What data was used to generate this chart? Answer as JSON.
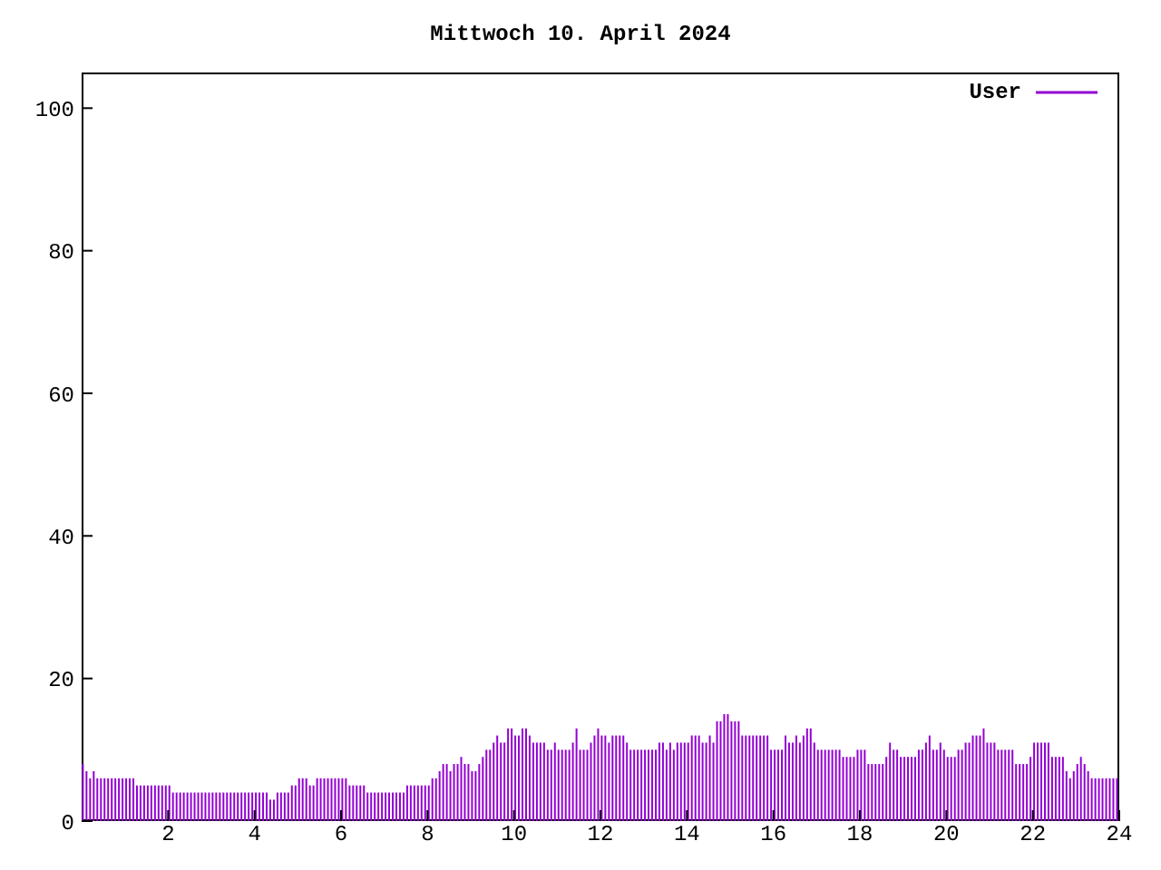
{
  "chart_data": {
    "type": "bar",
    "title": "Mittwoch 10. April 2024",
    "x": [
      0.05,
      0.133,
      0.217,
      0.3,
      0.383,
      0.467,
      0.55,
      0.633,
      0.717,
      0.8,
      0.883,
      0.967,
      1.05,
      1.133,
      1.217,
      1.3,
      1.383,
      1.467,
      1.55,
      1.633,
      1.717,
      1.8,
      1.883,
      1.967,
      2.05,
      2.133,
      2.217,
      2.3,
      2.383,
      2.467,
      2.55,
      2.633,
      2.717,
      2.8,
      2.883,
      2.967,
      3.05,
      3.133,
      3.217,
      3.3,
      3.383,
      3.467,
      3.55,
      3.633,
      3.717,
      3.8,
      3.883,
      3.967,
      4.05,
      4.133,
      4.217,
      4.3,
      4.383,
      4.467,
      4.55,
      4.633,
      4.717,
      4.8,
      4.883,
      4.967,
      5.05,
      5.133,
      5.217,
      5.3,
      5.383,
      5.467,
      5.55,
      5.633,
      5.717,
      5.8,
      5.883,
      5.967,
      6.05,
      6.133,
      6.217,
      6.3,
      6.383,
      6.467,
      6.55,
      6.633,
      6.717,
      6.8,
      6.883,
      6.967,
      7.05,
      7.133,
      7.217,
      7.3,
      7.383,
      7.467,
      7.55,
      7.633,
      7.717,
      7.8,
      7.883,
      7.967,
      8.05,
      8.133,
      8.217,
      8.3,
      8.383,
      8.467,
      8.55,
      8.633,
      8.717,
      8.8,
      8.883,
      8.967,
      9.05,
      9.133,
      9.217,
      9.3,
      9.383,
      9.467,
      9.55,
      9.633,
      9.717,
      9.8,
      9.883,
      9.967,
      10.05,
      10.133,
      10.217,
      10.3,
      10.383,
      10.467,
      10.55,
      10.633,
      10.717,
      10.8,
      10.883,
      10.967,
      11.05,
      11.133,
      11.217,
      11.3,
      11.383,
      11.467,
      11.55,
      11.633,
      11.717,
      11.8,
      11.883,
      11.967,
      12.05,
      12.133,
      12.217,
      12.3,
      12.383,
      12.467,
      12.55,
      12.633,
      12.717,
      12.8,
      12.883,
      12.967,
      13.05,
      13.133,
      13.217,
      13.3,
      13.383,
      13.467,
      13.55,
      13.633,
      13.717,
      13.8,
      13.883,
      13.967,
      14.05,
      14.133,
      14.217,
      14.3,
      14.383,
      14.467,
      14.55,
      14.633,
      14.717,
      14.8,
      14.883,
      14.967,
      15.05,
      15.133,
      15.217,
      15.3,
      15.383,
      15.467,
      15.55,
      15.633,
      15.717,
      15.8,
      15.883,
      15.967,
      16.05,
      16.133,
      16.217,
      16.3,
      16.383,
      16.467,
      16.55,
      16.633,
      16.717,
      16.8,
      16.883,
      16.967,
      17.05,
      17.133,
      17.217,
      17.3,
      17.383,
      17.467,
      17.55,
      17.633,
      17.717,
      17.8,
      17.883,
      17.967,
      18.05,
      18.133,
      18.217,
      18.3,
      18.383,
      18.467,
      18.55,
      18.633,
      18.717,
      18.8,
      18.883,
      18.967,
      19.05,
      19.133,
      19.217,
      19.3,
      19.383,
      19.467,
      19.55,
      19.633,
      19.717,
      19.8,
      19.883,
      19.967,
      20.05,
      20.133,
      20.217,
      20.3,
      20.383,
      20.467,
      20.55,
      20.633,
      20.717,
      20.8,
      20.883,
      20.967,
      21.05,
      21.133,
      21.217,
      21.3,
      21.383,
      21.467,
      21.55,
      21.633,
      21.717,
      21.8,
      21.883,
      21.967,
      22.05,
      22.133,
      22.217,
      22.3,
      22.383,
      22.467,
      22.55,
      22.633,
      22.717,
      22.8,
      22.883,
      22.967,
      23.05,
      23.133,
      23.217,
      23.3,
      23.383,
      23.467,
      23.55,
      23.633,
      23.717,
      23.8,
      23.883,
      23.967
    ],
    "series": [
      {
        "name": "User",
        "color": "#9400d3",
        "values": [
          8,
          7,
          6,
          7,
          6,
          6,
          6,
          6,
          6,
          6,
          6,
          6,
          6,
          6,
          6,
          5,
          5,
          5,
          5,
          5,
          5,
          5,
          5,
          5,
          5,
          4,
          4,
          4,
          4,
          4,
          4,
          4,
          4,
          4,
          4,
          4,
          4,
          4,
          4,
          4,
          4,
          4,
          4,
          4,
          4,
          4,
          4,
          4,
          4,
          4,
          4,
          4,
          3,
          3,
          4,
          4,
          4,
          4,
          5,
          5,
          6,
          6,
          6,
          5,
          5,
          6,
          6,
          6,
          6,
          6,
          6,
          6,
          6,
          6,
          5,
          5,
          5,
          5,
          5,
          4,
          4,
          4,
          4,
          4,
          4,
          4,
          4,
          4,
          4,
          4,
          5,
          5,
          5,
          5,
          5,
          5,
          5,
          6,
          6,
          7,
          8,
          8,
          7,
          8,
          8,
          9,
          8,
          8,
          7,
          7,
          8,
          9,
          10,
          10,
          11,
          12,
          11,
          11,
          13,
          13,
          12,
          12,
          13,
          13,
          12,
          11,
          11,
          11,
          11,
          10,
          10,
          11,
          10,
          10,
          10,
          10,
          11,
          13,
          10,
          10,
          10,
          11,
          12,
          13,
          12,
          12,
          11,
          12,
          12,
          12,
          12,
          11,
          10,
          10,
          10,
          10,
          10,
          10,
          10,
          10,
          11,
          11,
          10,
          11,
          10,
          11,
          11,
          11,
          11,
          12,
          12,
          12,
          11,
          11,
          12,
          11,
          14,
          14,
          15,
          15,
          14,
          14,
          14,
          12,
          12,
          12,
          12,
          12,
          12,
          12,
          12,
          10,
          10,
          10,
          10,
          12,
          11,
          11,
          12,
          11,
          12,
          13,
          13,
          11,
          10,
          10,
          10,
          10,
          10,
          10,
          10,
          9,
          9,
          9,
          9,
          10,
          10,
          10,
          8,
          8,
          8,
          8,
          8,
          9,
          11,
          10,
          10,
          9,
          9,
          9,
          9,
          9,
          10,
          10,
          11,
          12,
          10,
          10,
          11,
          10,
          9,
          9,
          9,
          10,
          10,
          11,
          11,
          12,
          12,
          12,
          13,
          11,
          11,
          11,
          10,
          10,
          10,
          10,
          10,
          8,
          8,
          8,
          8,
          9,
          11,
          11,
          11,
          11,
          11,
          9,
          9,
          9,
          9,
          7,
          6,
          7,
          8,
          9,
          8,
          7,
          6,
          6,
          6,
          6,
          6,
          6,
          6,
          6
        ]
      }
    ],
    "xlim": [
      0,
      24
    ],
    "xticks": [
      2,
      4,
      6,
      8,
      10,
      12,
      14,
      16,
      18,
      20,
      22,
      24
    ],
    "ylim": [
      0,
      105
    ],
    "yticks": [
      0,
      20,
      40,
      60,
      80,
      100
    ],
    "legend": "top right"
  }
}
